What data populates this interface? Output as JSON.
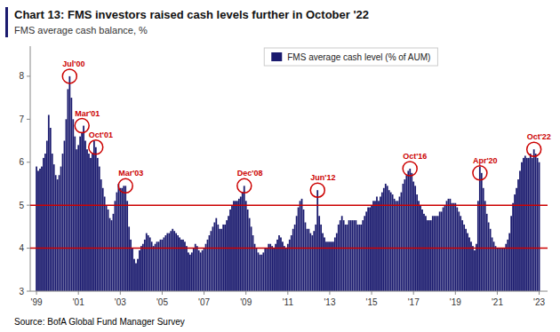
{
  "chart_data": {
    "type": "bar",
    "title": "Chart 13: FMS investors raised cash levels further in October '22",
    "subtitle": "FMS average cash balance, %",
    "source": "Source: BofA Global Fund Manager Survey",
    "legend": "top",
    "grid": false,
    "xlim": [
      1998.7,
      2023.4
    ],
    "xticks": [
      {
        "value": 1999,
        "label": "'99"
      },
      {
        "value": 2001,
        "label": "'01"
      },
      {
        "value": 2003,
        "label": "'03"
      },
      {
        "value": 2005,
        "label": "'05"
      },
      {
        "value": 2007,
        "label": "'07"
      },
      {
        "value": 2009,
        "label": "'09"
      },
      {
        "value": 2011,
        "label": "'11"
      },
      {
        "value": 2013,
        "label": "'13"
      },
      {
        "value": 2015,
        "label": "'15"
      },
      {
        "value": 2017,
        "label": "'17"
      },
      {
        "value": 2019,
        "label": "'19"
      },
      {
        "value": 2021,
        "label": "'21"
      },
      {
        "value": 2023,
        "label": "'23"
      }
    ],
    "ylim": [
      3.0,
      8.7
    ],
    "yticks": [
      3,
      4,
      5,
      6,
      7,
      8
    ],
    "reference_lines": [
      {
        "value": 5.0,
        "color": "#cc0000"
      },
      {
        "value": 4.0,
        "color": "#cc0000"
      }
    ],
    "annotations": [
      {
        "text": "Jul'00",
        "x": 2000.58,
        "y": 8.0,
        "color": "#cc0000"
      },
      {
        "text": "Mar'01",
        "x": 2001.17,
        "y": 6.85,
        "color": "#cc0000"
      },
      {
        "text": "Oct'01",
        "x": 2001.83,
        "y": 6.35,
        "color": "#cc0000"
      },
      {
        "text": "Mar'03",
        "x": 2003.25,
        "y": 5.45,
        "color": "#cc0000"
      },
      {
        "text": "Dec'08",
        "x": 2008.92,
        "y": 5.45,
        "color": "#cc0000"
      },
      {
        "text": "Jun'12",
        "x": 2012.42,
        "y": 5.35,
        "color": "#cc0000"
      },
      {
        "text": "Oct'16",
        "x": 2016.83,
        "y": 5.85,
        "color": "#cc0000"
      },
      {
        "text": "Apr'20",
        "x": 2020.17,
        "y": 5.75,
        "color": "#cc0000"
      },
      {
        "text": "Oct'22",
        "x": 2022.75,
        "y": 6.3,
        "color": "#cc0000"
      }
    ],
    "x": [
      1999.0,
      1999.083,
      1999.167,
      1999.25,
      1999.333,
      1999.417,
      1999.5,
      1999.583,
      1999.667,
      1999.75,
      1999.833,
      1999.917,
      2000.0,
      2000.083,
      2000.167,
      2000.25,
      2000.333,
      2000.417,
      2000.5,
      2000.583,
      2000.667,
      2000.75,
      2000.833,
      2000.917,
      2001.0,
      2001.083,
      2001.167,
      2001.25,
      2001.333,
      2001.417,
      2001.5,
      2001.583,
      2001.667,
      2001.75,
      2001.833,
      2001.917,
      2002.0,
      2002.083,
      2002.167,
      2002.25,
      2002.333,
      2002.417,
      2002.5,
      2002.583,
      2002.667,
      2002.75,
      2002.833,
      2002.917,
      2003.0,
      2003.083,
      2003.167,
      2003.25,
      2003.333,
      2003.417,
      2003.5,
      2003.583,
      2003.667,
      2003.75,
      2003.833,
      2003.917,
      2004.0,
      2004.083,
      2004.167,
      2004.25,
      2004.333,
      2004.417,
      2004.5,
      2004.583,
      2004.667,
      2004.75,
      2004.833,
      2004.917,
      2005.0,
      2005.083,
      2005.167,
      2005.25,
      2005.333,
      2005.417,
      2005.5,
      2005.583,
      2005.667,
      2005.75,
      2005.833,
      2005.917,
      2006.0,
      2006.083,
      2006.167,
      2006.25,
      2006.333,
      2006.417,
      2006.5,
      2006.583,
      2006.667,
      2006.75,
      2006.833,
      2006.917,
      2007.0,
      2007.083,
      2007.167,
      2007.25,
      2007.333,
      2007.417,
      2007.5,
      2007.583,
      2007.667,
      2007.75,
      2007.833,
      2007.917,
      2008.0,
      2008.083,
      2008.167,
      2008.25,
      2008.333,
      2008.417,
      2008.5,
      2008.583,
      2008.667,
      2008.75,
      2008.833,
      2008.917,
      2009.0,
      2009.083,
      2009.167,
      2009.25,
      2009.333,
      2009.417,
      2009.5,
      2009.583,
      2009.667,
      2009.75,
      2009.833,
      2009.917,
      2010.0,
      2010.083,
      2010.167,
      2010.25,
      2010.333,
      2010.417,
      2010.5,
      2010.583,
      2010.667,
      2010.75,
      2010.833,
      2010.917,
      2011.0,
      2011.083,
      2011.167,
      2011.25,
      2011.333,
      2011.417,
      2011.5,
      2011.583,
      2011.667,
      2011.75,
      2011.833,
      2011.917,
      2012.0,
      2012.083,
      2012.167,
      2012.25,
      2012.333,
      2012.417,
      2012.5,
      2012.583,
      2012.667,
      2012.75,
      2012.833,
      2012.917,
      2013.0,
      2013.083,
      2013.167,
      2013.25,
      2013.333,
      2013.417,
      2013.5,
      2013.583,
      2013.667,
      2013.75,
      2013.833,
      2013.917,
      2014.0,
      2014.083,
      2014.167,
      2014.25,
      2014.333,
      2014.417,
      2014.5,
      2014.583,
      2014.667,
      2014.75,
      2014.833,
      2014.917,
      2015.0,
      2015.083,
      2015.167,
      2015.25,
      2015.333,
      2015.417,
      2015.5,
      2015.583,
      2015.667,
      2015.75,
      2015.833,
      2015.917,
      2016.0,
      2016.083,
      2016.167,
      2016.25,
      2016.333,
      2016.417,
      2016.5,
      2016.583,
      2016.667,
      2016.75,
      2016.833,
      2016.917,
      2017.0,
      2017.083,
      2017.167,
      2017.25,
      2017.333,
      2017.417,
      2017.5,
      2017.583,
      2017.667,
      2017.75,
      2017.833,
      2017.917,
      2018.0,
      2018.083,
      2018.167,
      2018.25,
      2018.333,
      2018.417,
      2018.5,
      2018.583,
      2018.667,
      2018.75,
      2018.833,
      2018.917,
      2019.0,
      2019.083,
      2019.167,
      2019.25,
      2019.333,
      2019.417,
      2019.5,
      2019.583,
      2019.667,
      2019.75,
      2019.833,
      2019.917,
      2020.0,
      2020.083,
      2020.167,
      2020.25,
      2020.333,
      2020.417,
      2020.5,
      2020.583,
      2020.667,
      2020.75,
      2020.833,
      2020.917,
      2021.0,
      2021.083,
      2021.167,
      2021.25,
      2021.333,
      2021.417,
      2021.5,
      2021.583,
      2021.667,
      2021.75,
      2021.833,
      2021.917,
      2022.0,
      2022.083,
      2022.167,
      2022.25,
      2022.333,
      2022.417,
      2022.5,
      2022.583,
      2022.667,
      2022.75,
      2022.833,
      2022.917,
      2023.0
    ],
    "series": [
      {
        "name": "FMS average cash level (% of AUM)",
        "color": "#1a1a6e",
        "values": [
          5.9,
          5.8,
          5.85,
          5.9,
          6.1,
          6.2,
          6.5,
          7.1,
          6.8,
          6.2,
          5.95,
          5.7,
          5.6,
          5.7,
          5.9,
          6.2,
          6.5,
          7.0,
          7.7,
          8.0,
          7.5,
          7.0,
          6.6,
          6.3,
          6.4,
          6.6,
          6.7,
          6.85,
          6.5,
          6.3,
          6.2,
          6.1,
          6.2,
          6.5,
          6.35,
          6.1,
          5.9,
          5.6,
          5.4,
          5.2,
          5.0,
          4.9,
          4.7,
          4.65,
          4.8,
          5.1,
          5.3,
          5.5,
          5.4,
          5.4,
          5.45,
          5.45,
          5.1,
          4.5,
          4.2,
          4.0,
          3.75,
          3.65,
          3.75,
          3.95,
          4.05,
          4.1,
          4.2,
          4.35,
          4.3,
          4.25,
          4.15,
          4.05,
          4.1,
          4.15,
          4.15,
          4.2,
          4.2,
          4.25,
          4.3,
          4.35,
          4.35,
          4.4,
          4.45,
          4.4,
          4.35,
          4.3,
          4.25,
          4.2,
          4.2,
          4.15,
          4.05,
          3.9,
          3.85,
          3.9,
          4.0,
          4.1,
          4.05,
          3.95,
          3.9,
          3.95,
          4.0,
          4.1,
          4.2,
          4.3,
          4.4,
          4.5,
          4.6,
          4.7,
          4.55,
          4.45,
          4.45,
          4.55,
          4.55,
          4.65,
          4.75,
          4.9,
          5.0,
          5.1,
          5.1,
          5.1,
          5.15,
          5.2,
          5.3,
          5.45,
          5.1,
          4.9,
          4.7,
          4.5,
          4.3,
          4.1,
          4.0,
          3.9,
          3.85,
          3.85,
          3.9,
          4.0,
          4.0,
          4.1,
          4.1,
          4.05,
          4.0,
          4.1,
          4.2,
          4.3,
          4.25,
          4.15,
          4.05,
          4.0,
          4.1,
          4.2,
          4.3,
          4.45,
          4.55,
          4.75,
          4.95,
          5.1,
          5.15,
          4.9,
          4.6,
          4.45,
          4.45,
          4.35,
          4.3,
          4.4,
          4.55,
          5.35,
          4.75,
          4.55,
          4.35,
          4.25,
          4.15,
          4.15,
          4.15,
          4.15,
          4.15,
          4.25,
          4.35,
          4.55,
          4.65,
          4.75,
          4.65,
          4.55,
          4.55,
          4.65,
          4.65,
          4.65,
          4.65,
          4.65,
          4.55,
          4.55,
          4.55,
          4.65,
          4.75,
          4.85,
          4.95,
          4.95,
          5.0,
          5.1,
          5.1,
          5.2,
          5.1,
          5.2,
          5.3,
          5.4,
          5.5,
          5.45,
          5.35,
          5.3,
          5.25,
          5.15,
          5.1,
          5.1,
          5.2,
          5.3,
          5.5,
          5.6,
          5.7,
          5.8,
          5.85,
          5.75,
          5.55,
          5.45,
          5.25,
          5.1,
          5.0,
          4.9,
          4.8,
          4.75,
          4.65,
          4.65,
          4.65,
          4.75,
          4.75,
          4.75,
          4.75,
          4.85,
          4.85,
          4.95,
          5.0,
          5.1,
          5.15,
          5.15,
          5.05,
          5.05,
          5.05,
          4.95,
          4.85,
          4.75,
          4.65,
          4.55,
          4.45,
          4.35,
          4.25,
          4.15,
          4.05,
          3.95,
          4.1,
          5.1,
          5.9,
          5.75,
          5.4,
          5.1,
          4.8,
          4.6,
          4.45,
          4.25,
          4.15,
          4.05,
          4.0,
          4.0,
          4.0,
          4.0,
          4.0,
          4.1,
          4.2,
          4.35,
          4.75,
          5.05,
          5.25,
          5.4,
          5.6,
          5.8,
          6.0,
          6.1,
          6.15,
          6.1,
          6.1,
          6.2,
          6.1,
          6.3,
          6.2,
          6.1,
          6.0
        ]
      }
    ]
  }
}
